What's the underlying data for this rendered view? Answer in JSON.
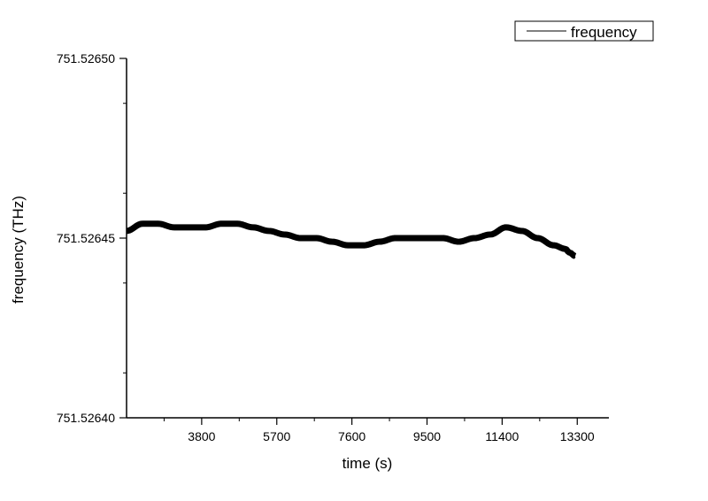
{
  "chart_data": {
    "type": "line",
    "xlabel": "time (s)",
    "ylabel": "frequency (THz)",
    "xlim": [
      1900,
      14100
    ],
    "ylim": [
      751.5264,
      751.5265
    ],
    "x_ticks": [
      {
        "value": 3800,
        "label": "3800"
      },
      {
        "value": 5700,
        "label": "5700"
      },
      {
        "value": 7600,
        "label": "7600"
      },
      {
        "value": 9500,
        "label": "9500"
      },
      {
        "value": 11400,
        "label": "11400"
      },
      {
        "value": 13300,
        "label": "13300"
      }
    ],
    "y_ticks": [
      {
        "value": 751.5264,
        "label": "751.52640"
      },
      {
        "value": 751.52645,
        "label": "751.52645"
      },
      {
        "value": 751.5265,
        "label": "751.52650"
      }
    ],
    "legend": {
      "position": "top-right",
      "entries": [
        "frequency"
      ]
    },
    "grid": false,
    "series": [
      {
        "name": "frequency",
        "color": "#000000",
        "x": [
          1900,
          2300,
          2700,
          3100,
          3500,
          3900,
          4300,
          4700,
          5100,
          5500,
          5900,
          6300,
          6700,
          7100,
          7500,
          7900,
          8300,
          8700,
          9100,
          9500,
          9900,
          10300,
          10700,
          11100,
          11500,
          11900,
          12300,
          12700,
          13000,
          13100,
          13250
        ],
        "y": [
          751.526452,
          751.526454,
          751.526454,
          751.526453,
          751.526453,
          751.526453,
          751.526454,
          751.526454,
          751.526453,
          751.526452,
          751.526451,
          751.52645,
          751.52645,
          751.526449,
          751.526448,
          751.526448,
          751.526449,
          751.52645,
          751.52645,
          751.52645,
          751.52645,
          751.526449,
          751.52645,
          751.526451,
          751.526453,
          751.526452,
          751.52645,
          751.526448,
          751.526447,
          751.526446,
          751.526445
        ],
        "noise_band": 8e-07
      }
    ]
  }
}
